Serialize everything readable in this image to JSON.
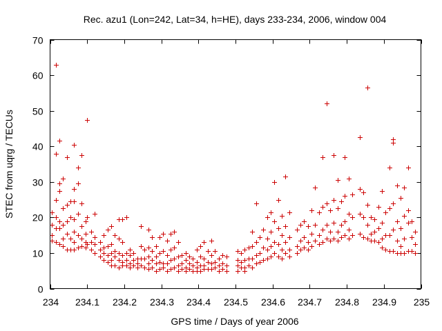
{
  "chart_data": {
    "type": "scatter",
    "title": "Rec. azu1 (Lon=242, Lat=34, h=HE), days 233-234, 2006, window 004",
    "xlabel": "GPS time / Days of year 2006",
    "ylabel": "STEC from uqrg / TECUs",
    "xlim": [
      234,
      235
    ],
    "ylim": [
      0,
      70
    ],
    "xticks": [
      "234",
      "234.1",
      "234.2",
      "234.3",
      "234.4",
      "234.5",
      "234.6",
      "234.7",
      "234.8",
      "234.9",
      "235"
    ],
    "yticks": [
      "0",
      "10",
      "20",
      "30",
      "40",
      "50",
      "60",
      "70"
    ],
    "grid": false,
    "legend": "none",
    "marker": "plus",
    "color": "#cc0000",
    "points": [
      [
        234.005,
        21.5
      ],
      [
        234.005,
        18.0
      ],
      [
        234.005,
        15.0
      ],
      [
        234.005,
        13.5
      ],
      [
        234.015,
        63.0
      ],
      [
        234.015,
        38.0
      ],
      [
        234.015,
        25.0
      ],
      [
        234.015,
        20.0
      ],
      [
        234.015,
        17.0
      ],
      [
        234.015,
        13.0
      ],
      [
        234.025,
        41.5
      ],
      [
        234.025,
        29.5
      ],
      [
        234.025,
        27.5
      ],
      [
        234.025,
        19.0
      ],
      [
        234.025,
        17.0
      ],
      [
        234.025,
        12.5
      ],
      [
        234.035,
        31.0
      ],
      [
        234.035,
        22.5
      ],
      [
        234.035,
        18.0
      ],
      [
        234.035,
        14.0
      ],
      [
        234.035,
        12.0
      ],
      [
        234.045,
        37.0
      ],
      [
        234.045,
        23.5
      ],
      [
        234.045,
        19.0
      ],
      [
        234.045,
        15.5
      ],
      [
        234.045,
        11.0
      ],
      [
        234.055,
        24.5
      ],
      [
        234.055,
        20.0
      ],
      [
        234.055,
        14.0
      ],
      [
        234.055,
        11.0
      ],
      [
        234.065,
        40.5
      ],
      [
        234.065,
        28.0
      ],
      [
        234.065,
        24.5
      ],
      [
        234.065,
        19.5
      ],
      [
        234.065,
        16.0
      ],
      [
        234.065,
        13.0
      ],
      [
        234.065,
        11.0
      ],
      [
        234.075,
        34.0
      ],
      [
        234.075,
        29.5
      ],
      [
        234.075,
        21.0
      ],
      [
        234.075,
        15.0
      ],
      [
        234.075,
        11.5
      ],
      [
        234.085,
        37.5
      ],
      [
        234.085,
        24.0
      ],
      [
        234.085,
        17.5
      ],
      [
        234.085,
        14.0
      ],
      [
        234.085,
        12.0
      ],
      [
        234.095,
        19.0
      ],
      [
        234.095,
        15.5
      ],
      [
        234.095,
        13.0
      ],
      [
        234.095,
        11.5
      ],
      [
        234.1,
        47.5
      ],
      [
        234.1,
        20.0
      ],
      [
        234.1,
        12.5
      ],
      [
        234.11,
        16.0
      ],
      [
        234.11,
        13.0
      ],
      [
        234.11,
        11.0
      ],
      [
        234.12,
        21.0
      ],
      [
        234.12,
        14.5
      ],
      [
        234.12,
        12.5
      ],
      [
        234.12,
        10.0
      ],
      [
        234.135,
        13.0
      ],
      [
        234.135,
        11.0
      ],
      [
        234.135,
        9.0
      ],
      [
        234.145,
        15.0
      ],
      [
        234.145,
        11.5
      ],
      [
        234.145,
        10.0
      ],
      [
        234.145,
        8.0
      ],
      [
        234.155,
        16.5
      ],
      [
        234.155,
        12.0
      ],
      [
        234.155,
        9.5
      ],
      [
        234.155,
        7.5
      ],
      [
        234.165,
        17.5
      ],
      [
        234.165,
        12.5
      ],
      [
        234.165,
        10.0
      ],
      [
        234.165,
        8.0
      ],
      [
        234.165,
        6.5
      ],
      [
        234.175,
        15.0
      ],
      [
        234.175,
        10.5
      ],
      [
        234.175,
        9.0
      ],
      [
        234.175,
        6.5
      ],
      [
        234.185,
        19.5
      ],
      [
        234.185,
        14.0
      ],
      [
        234.185,
        10.0
      ],
      [
        234.185,
        8.0
      ],
      [
        234.185,
        6.0
      ],
      [
        234.195,
        19.5
      ],
      [
        234.195,
        13.0
      ],
      [
        234.195,
        9.5
      ],
      [
        234.195,
        7.5
      ],
      [
        234.195,
        6.5
      ],
      [
        234.205,
        20.0
      ],
      [
        234.205,
        10.0
      ],
      [
        234.205,
        8.0
      ],
      [
        234.205,
        6.5
      ],
      [
        234.215,
        11.0
      ],
      [
        234.215,
        9.5
      ],
      [
        234.215,
        7.0
      ],
      [
        234.215,
        6.0
      ],
      [
        234.225,
        10.0
      ],
      [
        234.225,
        8.0
      ],
      [
        234.225,
        6.5
      ],
      [
        234.235,
        8.5
      ],
      [
        234.235,
        7.0
      ],
      [
        234.235,
        6.0
      ],
      [
        234.245,
        17.5
      ],
      [
        234.245,
        12.0
      ],
      [
        234.245,
        8.5
      ],
      [
        234.245,
        6.5
      ],
      [
        234.255,
        11.0
      ],
      [
        234.255,
        8.5
      ],
      [
        234.255,
        6.0
      ],
      [
        234.265,
        16.5
      ],
      [
        234.265,
        11.5
      ],
      [
        234.265,
        9.0
      ],
      [
        234.265,
        7.0
      ],
      [
        234.265,
        5.5
      ],
      [
        234.275,
        14.5
      ],
      [
        234.275,
        10.5
      ],
      [
        234.275,
        8.0
      ],
      [
        234.275,
        6.0
      ],
      [
        234.285,
        12.0
      ],
      [
        234.285,
        9.0
      ],
      [
        234.285,
        7.0
      ],
      [
        234.285,
        5.0
      ],
      [
        234.295,
        14.5
      ],
      [
        234.295,
        10.0
      ],
      [
        234.295,
        7.5
      ],
      [
        234.295,
        5.5
      ],
      [
        234.305,
        15.5
      ],
      [
        234.305,
        10.5
      ],
      [
        234.305,
        7.0
      ],
      [
        234.305,
        6.0
      ],
      [
        234.315,
        13.5
      ],
      [
        234.315,
        9.5
      ],
      [
        234.315,
        7.0
      ],
      [
        234.315,
        5.0
      ],
      [
        234.325,
        15.5
      ],
      [
        234.325,
        11.0
      ],
      [
        234.325,
        8.0
      ],
      [
        234.325,
        5.5
      ],
      [
        234.335,
        16.0
      ],
      [
        234.335,
        11.5
      ],
      [
        234.335,
        8.5
      ],
      [
        234.335,
        6.0
      ],
      [
        234.345,
        13.0
      ],
      [
        234.345,
        9.0
      ],
      [
        234.345,
        6.5
      ],
      [
        234.345,
        5.0
      ],
      [
        234.355,
        9.5
      ],
      [
        234.355,
        7.0
      ],
      [
        234.355,
        5.5
      ],
      [
        234.365,
        10.0
      ],
      [
        234.365,
        8.0
      ],
      [
        234.365,
        6.0
      ],
      [
        234.365,
        5.0
      ],
      [
        234.375,
        9.0
      ],
      [
        234.375,
        7.0
      ],
      [
        234.375,
        5.5
      ],
      [
        234.385,
        8.5
      ],
      [
        234.385,
        6.5
      ],
      [
        234.385,
        5.0
      ],
      [
        234.395,
        11.0
      ],
      [
        234.395,
        7.5
      ],
      [
        234.395,
        6.0
      ],
      [
        234.395,
        5.0
      ],
      [
        234.405,
        12.0
      ],
      [
        234.405,
        9.0
      ],
      [
        234.405,
        6.5
      ],
      [
        234.405,
        5.0
      ],
      [
        234.415,
        13.0
      ],
      [
        234.415,
        8.5
      ],
      [
        234.415,
        6.5
      ],
      [
        234.415,
        5.5
      ],
      [
        234.425,
        10.5
      ],
      [
        234.425,
        7.5
      ],
      [
        234.425,
        5.5
      ],
      [
        234.435,
        13.5
      ],
      [
        234.435,
        9.5
      ],
      [
        234.435,
        7.0
      ],
      [
        234.435,
        5.5
      ],
      [
        234.445,
        10.5
      ],
      [
        234.445,
        7.5
      ],
      [
        234.445,
        6.0
      ],
      [
        234.455,
        8.5
      ],
      [
        234.455,
        6.5
      ],
      [
        234.455,
        5.0
      ],
      [
        234.465,
        9.5
      ],
      [
        234.465,
        7.0
      ],
      [
        234.465,
        5.5
      ],
      [
        234.475,
        9.0
      ],
      [
        234.475,
        6.5
      ],
      [
        234.475,
        5.0
      ],
      [
        234.505,
        10.5
      ],
      [
        234.505,
        8.0
      ],
      [
        234.505,
        6.5
      ],
      [
        234.505,
        5.0
      ],
      [
        234.515,
        10.0
      ],
      [
        234.515,
        7.5
      ],
      [
        234.515,
        6.0
      ],
      [
        234.525,
        11.0
      ],
      [
        234.525,
        8.0
      ],
      [
        234.525,
        6.0
      ],
      [
        234.525,
        5.0
      ],
      [
        234.535,
        11.5
      ],
      [
        234.535,
        8.5
      ],
      [
        234.535,
        6.5
      ],
      [
        234.545,
        16.0
      ],
      [
        234.545,
        12.0
      ],
      [
        234.545,
        8.5
      ],
      [
        234.545,
        6.0
      ],
      [
        234.555,
        24.0
      ],
      [
        234.555,
        13.0
      ],
      [
        234.555,
        9.5
      ],
      [
        234.555,
        7.0
      ],
      [
        234.565,
        14.5
      ],
      [
        234.565,
        10.0
      ],
      [
        234.565,
        7.5
      ],
      [
        234.575,
        16.5
      ],
      [
        234.575,
        11.5
      ],
      [
        234.575,
        8.0
      ],
      [
        234.585,
        20.0
      ],
      [
        234.585,
        14.0
      ],
      [
        234.585,
        11.0
      ],
      [
        234.585,
        8.5
      ],
      [
        234.595,
        21.5
      ],
      [
        234.595,
        16.0
      ],
      [
        234.595,
        12.0
      ],
      [
        234.595,
        9.0
      ],
      [
        234.605,
        30.0
      ],
      [
        234.605,
        19.0
      ],
      [
        234.605,
        13.0
      ],
      [
        234.605,
        10.0
      ],
      [
        234.615,
        25.0
      ],
      [
        234.615,
        17.0
      ],
      [
        234.615,
        12.5
      ],
      [
        234.615,
        9.0
      ],
      [
        234.625,
        20.5
      ],
      [
        234.625,
        15.0
      ],
      [
        234.625,
        11.0
      ],
      [
        234.625,
        8.5
      ],
      [
        234.635,
        31.5
      ],
      [
        234.635,
        17.5
      ],
      [
        234.635,
        13.0
      ],
      [
        234.635,
        10.0
      ],
      [
        234.645,
        21.5
      ],
      [
        234.645,
        14.5
      ],
      [
        234.645,
        11.0
      ],
      [
        234.645,
        9.0
      ],
      [
        234.665,
        16.5
      ],
      [
        234.665,
        12.0
      ],
      [
        234.665,
        10.0
      ],
      [
        234.675,
        18.0
      ],
      [
        234.675,
        13.5
      ],
      [
        234.675,
        11.0
      ],
      [
        234.685,
        19.0
      ],
      [
        234.685,
        14.5
      ],
      [
        234.685,
        11.5
      ],
      [
        234.695,
        17.5
      ],
      [
        234.695,
        13.0
      ],
      [
        234.695,
        11.0
      ],
      [
        234.705,
        22.0
      ],
      [
        234.705,
        15.5
      ],
      [
        234.705,
        12.0
      ],
      [
        234.715,
        28.5
      ],
      [
        234.715,
        18.0
      ],
      [
        234.715,
        13.5
      ],
      [
        234.725,
        21.5
      ],
      [
        234.725,
        15.0
      ],
      [
        234.725,
        12.5
      ],
      [
        234.735,
        37.0
      ],
      [
        234.735,
        23.0
      ],
      [
        234.735,
        16.5
      ],
      [
        234.735,
        13.0
      ],
      [
        234.745,
        52.0
      ],
      [
        234.745,
        24.0
      ],
      [
        234.745,
        18.0
      ],
      [
        234.745,
        14.0
      ],
      [
        234.755,
        22.0
      ],
      [
        234.755,
        16.0
      ],
      [
        234.755,
        13.5
      ],
      [
        234.765,
        37.5
      ],
      [
        234.765,
        25.0
      ],
      [
        234.765,
        18.5
      ],
      [
        234.765,
        14.0
      ],
      [
        234.775,
        30.5
      ],
      [
        234.775,
        22.5
      ],
      [
        234.775,
        16.0
      ],
      [
        234.775,
        13.5
      ],
      [
        234.785,
        24.5
      ],
      [
        234.785,
        18.0
      ],
      [
        234.785,
        14.5
      ],
      [
        234.795,
        37.0
      ],
      [
        234.795,
        26.0
      ],
      [
        234.795,
        19.0
      ],
      [
        234.795,
        15.0
      ],
      [
        234.805,
        31.0
      ],
      [
        234.805,
        21.0
      ],
      [
        234.805,
        16.5
      ],
      [
        234.805,
        14.0
      ],
      [
        234.815,
        26.5
      ],
      [
        234.815,
        20.0
      ],
      [
        234.815,
        15.0
      ],
      [
        234.835,
        42.5
      ],
      [
        234.835,
        28.0
      ],
      [
        234.835,
        21.0
      ],
      [
        234.835,
        15.5
      ],
      [
        234.845,
        27.0
      ],
      [
        234.845,
        20.0
      ],
      [
        234.845,
        14.5
      ],
      [
        234.855,
        56.5
      ],
      [
        234.855,
        23.5
      ],
      [
        234.855,
        18.0
      ],
      [
        234.855,
        14.0
      ],
      [
        234.865,
        20.0
      ],
      [
        234.865,
        15.5
      ],
      [
        234.865,
        13.5
      ],
      [
        234.875,
        19.5
      ],
      [
        234.875,
        16.0
      ],
      [
        234.875,
        13.5
      ],
      [
        234.885,
        23.0
      ],
      [
        234.885,
        17.0
      ],
      [
        234.885,
        13.0
      ],
      [
        234.895,
        27.5
      ],
      [
        234.895,
        18.5
      ],
      [
        234.895,
        14.0
      ],
      [
        234.895,
        11.5
      ],
      [
        234.905,
        21.5
      ],
      [
        234.905,
        15.0
      ],
      [
        234.905,
        11.0
      ],
      [
        234.915,
        34.0
      ],
      [
        234.915,
        22.5
      ],
      [
        234.915,
        15.0
      ],
      [
        234.915,
        10.5
      ],
      [
        234.925,
        42.0
      ],
      [
        234.925,
        41.0
      ],
      [
        234.925,
        24.0
      ],
      [
        234.925,
        16.5
      ],
      [
        234.925,
        10.5
      ],
      [
        234.935,
        29.0
      ],
      [
        234.935,
        19.0
      ],
      [
        234.935,
        13.5
      ],
      [
        234.935,
        10.0
      ],
      [
        234.945,
        25.5
      ],
      [
        234.945,
        17.0
      ],
      [
        234.945,
        12.0
      ],
      [
        234.945,
        10.0
      ],
      [
        234.955,
        28.5
      ],
      [
        234.955,
        20.5
      ],
      [
        234.955,
        14.0
      ],
      [
        234.955,
        10.0
      ],
      [
        234.965,
        34.0
      ],
      [
        234.965,
        22.0
      ],
      [
        234.965,
        18.5
      ],
      [
        234.965,
        10.5
      ],
      [
        234.975,
        19.0
      ],
      [
        234.975,
        14.5
      ],
      [
        234.975,
        10.5
      ],
      [
        234.985,
        16.0
      ],
      [
        234.985,
        12.5
      ],
      [
        234.985,
        10.0
      ]
    ]
  }
}
